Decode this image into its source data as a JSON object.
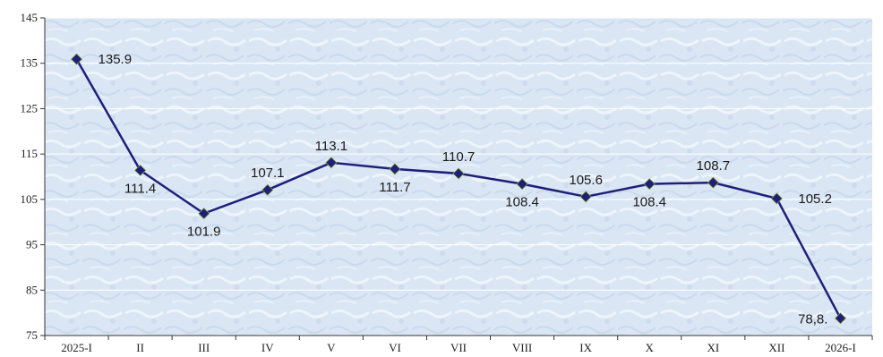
{
  "chart_data": {
    "type": "line",
    "title": "",
    "xlabel": "",
    "ylabel": "",
    "ylim": [
      75,
      145
    ],
    "yticks": [
      "75",
      "85",
      "95",
      "105",
      "115",
      "125",
      "135",
      "145"
    ],
    "categories": [
      "2025-I",
      "II",
      "III",
      "IV",
      "V",
      "VI",
      "VII",
      "VIII",
      "IX",
      "X",
      "XI",
      "XII",
      "2026-I"
    ],
    "series": [
      {
        "name": "",
        "color": "#1f1f7a",
        "values": [
          135.9,
          111.4,
          101.9,
          107.1,
          113.1,
          111.7,
          110.7,
          108.4,
          105.6,
          108.4,
          108.7,
          105.2,
          78.8
        ],
        "labels": [
          "135.9",
          "111.4",
          "101.9",
          "107.1",
          "113.1",
          "111.7",
          "110.7",
          "108.4",
          "105.6",
          "108.4",
          "108.7",
          "105.2",
          "78,8."
        ]
      }
    ],
    "grid": true,
    "legend": "none",
    "colors": {
      "plot_background": "#dde9f6",
      "gridline": "#ffffff",
      "line": "#1f1f7a",
      "marker": "#1f1f7a",
      "marker_accent": "#8aa832"
    }
  }
}
